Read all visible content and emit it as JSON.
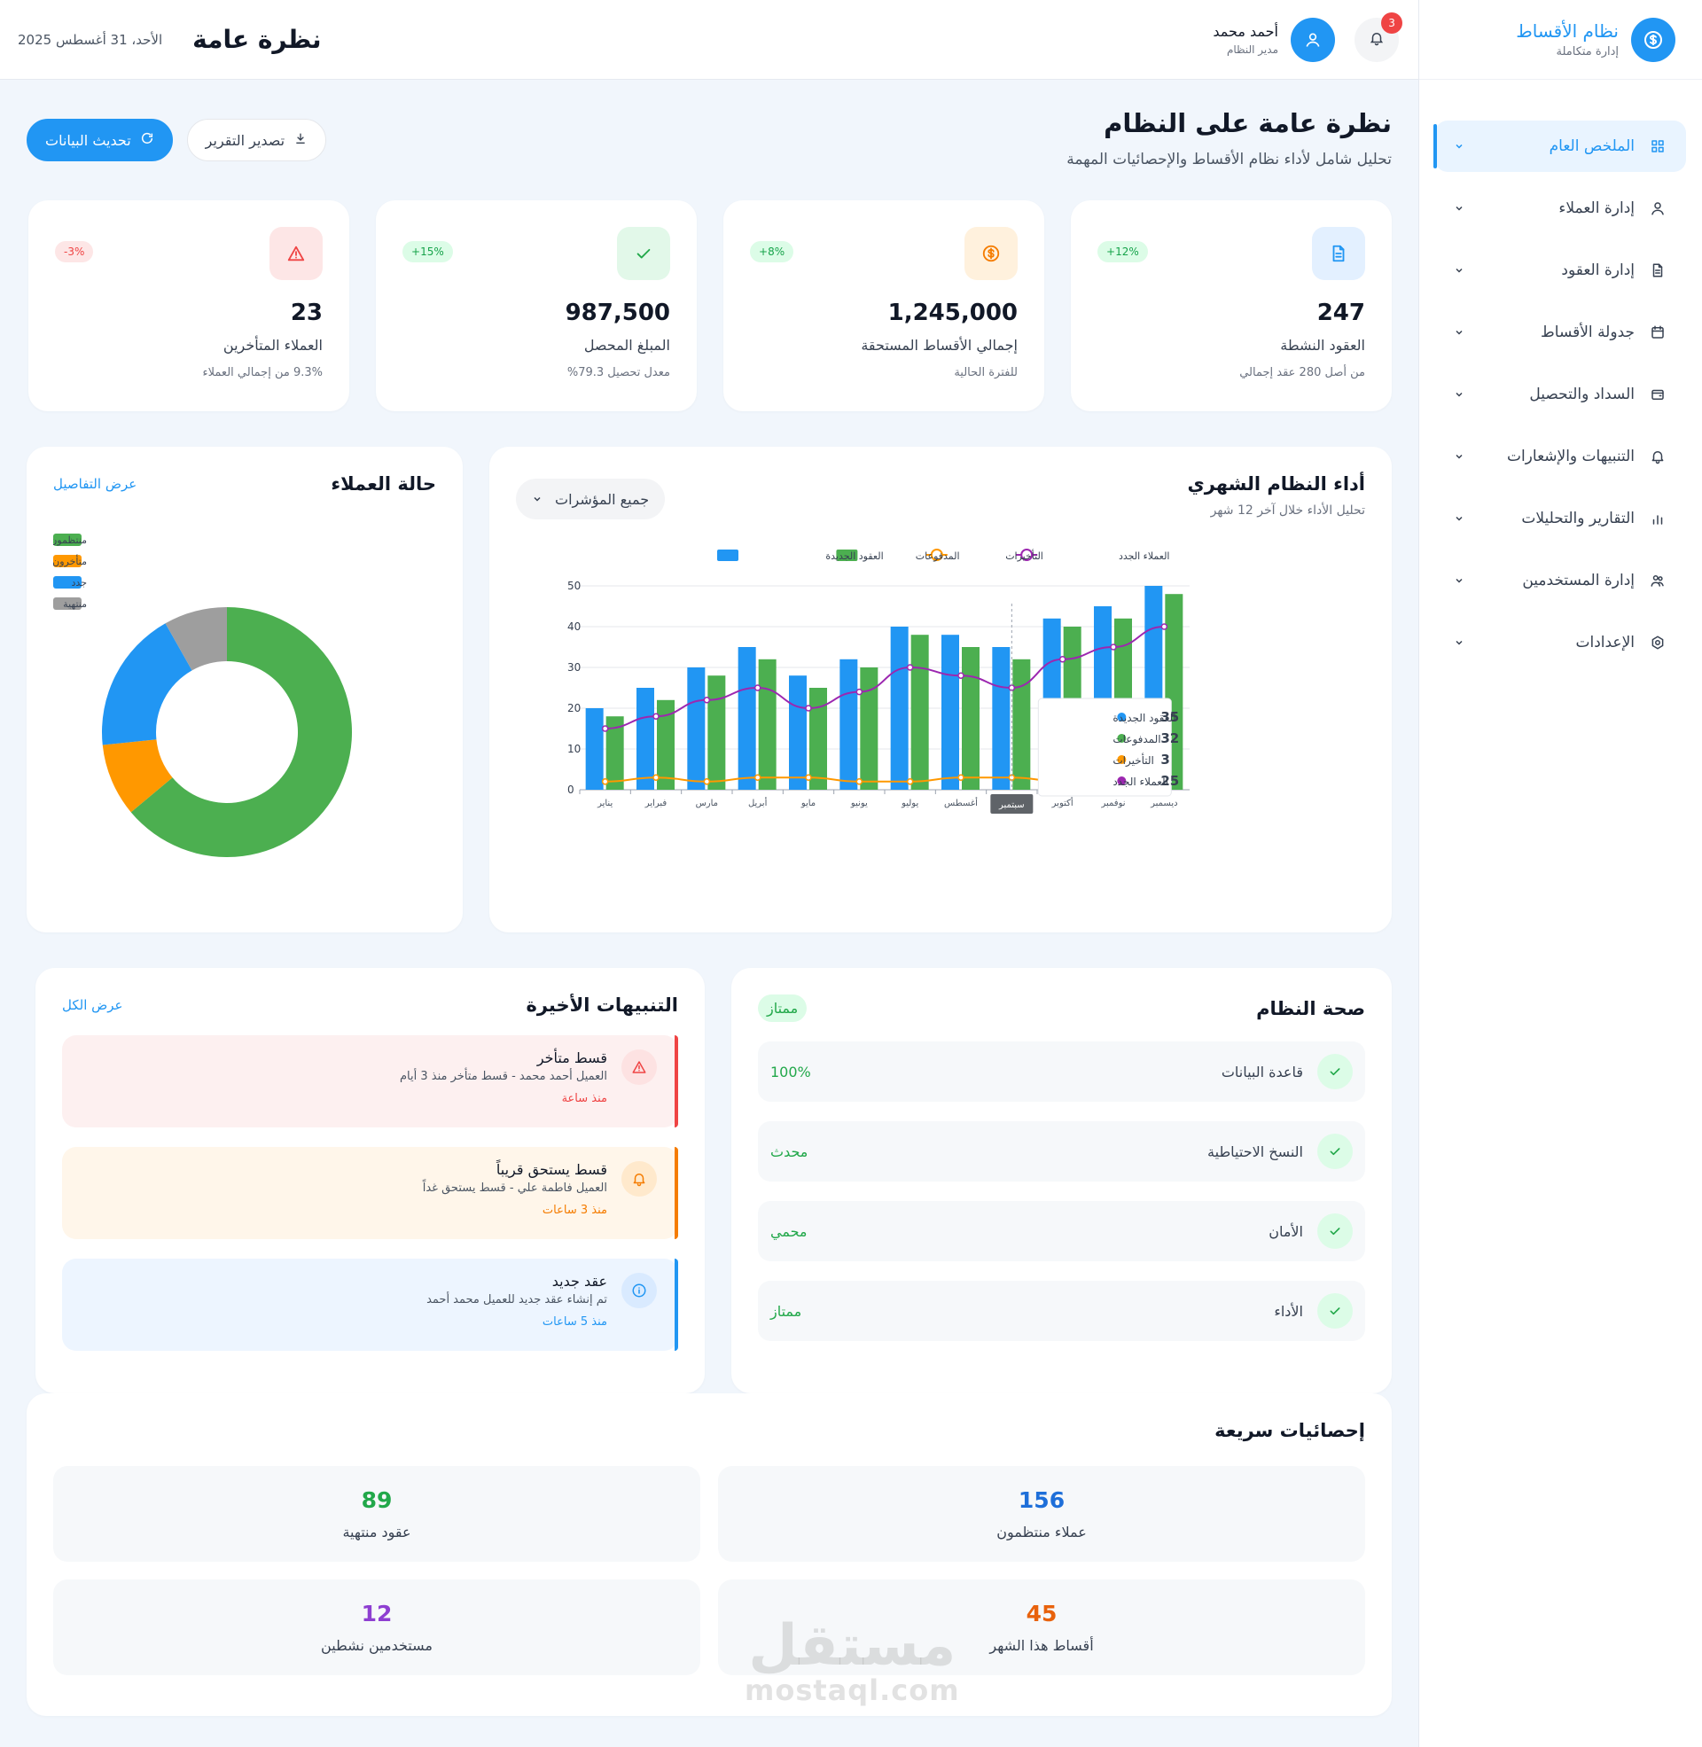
{
  "sidebar": {
    "brand_title": "نظام الأقساط",
    "brand_sub": "إدارة متكاملة",
    "items": [
      {
        "label": "الملخص العام",
        "icon": "grid-icon"
      },
      {
        "label": "إدارة العملاء",
        "icon": "user-icon"
      },
      {
        "label": "إدارة العقود",
        "icon": "document-icon"
      },
      {
        "label": "جدولة الأقساط",
        "icon": "calendar-icon"
      },
      {
        "label": "السداد والتحصيل",
        "icon": "wallet-icon"
      },
      {
        "label": "التنبيهات والإشعارات",
        "icon": "bell-icon"
      },
      {
        "label": "التقارير والتحليلات",
        "icon": "bar-chart-icon"
      },
      {
        "label": "إدارة المستخدمين",
        "icon": "users-icon"
      },
      {
        "label": "الإعدادات",
        "icon": "settings-icon"
      }
    ]
  },
  "header": {
    "title": "نظرة عامة",
    "date": "الأحد، 31 أغسطس 2025",
    "user_name": "أحمد محمد",
    "user_role": "مدير النظام",
    "notifications": "3"
  },
  "page": {
    "title": "نظرة عامة على النظام",
    "subtitle": "تحليل شامل لأداء نظام الأقساط والإحصائيات المهمة",
    "refresh_label": "تحديث البيانات",
    "export_label": "تصدير التقرير"
  },
  "stats": [
    {
      "value": "247",
      "label": "العقود النشطة",
      "note": "من أصل 280 عقد إجمالي",
      "badge": "12%+",
      "icon": "document-icon",
      "color": "#2196f3",
      "bg": "#e3f0ff",
      "badge_color": "#16a34a",
      "badge_bg": "#dcfce7"
    },
    {
      "value": "1,245,000",
      "label": "إجمالي الأقساط المستحقة",
      "note": "للفترة الحالية",
      "badge": "8%+",
      "icon": "dollar-icon",
      "color": "#f57c00",
      "bg": "#fff1dd",
      "badge_color": "#16a34a",
      "badge_bg": "#dcfce7"
    },
    {
      "value": "987,500",
      "label": "المبلغ المحصل",
      "note": "معدل تحصيل 79.3%",
      "badge": "15%+",
      "icon": "check-icon",
      "color": "#22a84a",
      "bg": "#e2f8e9",
      "badge_color": "#16a34a",
      "badge_bg": "#dcfce7"
    },
    {
      "value": "23",
      "label": "العملاء المتأخرين",
      "note": "9.3% من إجمالي العملاء",
      "badge": "3%-",
      "icon": "warning-icon",
      "color": "#ef4444",
      "bg": "#fde6e6",
      "badge_color": "#ef4444",
      "badge_bg": "#fde6e6"
    }
  ],
  "performance": {
    "title": "أداء النظام الشهري",
    "subtitle": "تحليل الأداء خلال آخر 12 شهر",
    "filter": "جميع المؤشرات"
  },
  "chart_data": {
    "type": "bar",
    "categories": [
      "يناير",
      "فبراير",
      "مارس",
      "أبريل",
      "مايو",
      "يونيو",
      "يوليو",
      "أغسطس",
      "سبتمبر",
      "أكتوبر",
      "نوفمبر",
      "ديسمبر"
    ],
    "series": [
      {
        "name": "العقود الجديدة",
        "type": "bar",
        "color": "#2196f3",
        "values": [
          20,
          25,
          30,
          35,
          28,
          32,
          40,
          38,
          35,
          42,
          45,
          50
        ]
      },
      {
        "name": "المدفوعات",
        "type": "bar",
        "color": "#4caf50",
        "values": [
          18,
          22,
          28,
          32,
          25,
          30,
          38,
          35,
          32,
          40,
          42,
          48
        ]
      },
      {
        "name": "التأخيرات",
        "type": "line",
        "color": "#ff9800",
        "values": [
          2,
          3,
          2,
          3,
          3,
          2,
          2,
          3,
          3,
          2,
          3,
          2
        ]
      },
      {
        "name": "العملاء الجدد",
        "type": "line",
        "color": "#9c27b0",
        "values": [
          15,
          18,
          22,
          25,
          20,
          24,
          30,
          28,
          25,
          32,
          35,
          40
        ]
      }
    ],
    "yticks": [
      "0",
      "10",
      "20",
      "30",
      "40",
      "50"
    ],
    "ylim": [
      0,
      50
    ],
    "tooltip": {
      "category": "سبتمبر",
      "rows": [
        {
          "name": "العقود الجديدة",
          "value": "35",
          "color": "#2196f3"
        },
        {
          "name": "المدفوعات",
          "value": "32",
          "color": "#4caf50"
        },
        {
          "name": "التأخيرات",
          "value": "3",
          "color": "#ff9800"
        },
        {
          "name": "العملاء الجدد",
          "value": "25",
          "color": "#9c27b0"
        }
      ]
    }
  },
  "status_chart": {
    "title": "حالة العملاء",
    "link": "عرض التفاصيل",
    "type": "pie",
    "slices": [
      {
        "name": "منتظمون",
        "value": 156,
        "color": "#4caf50"
      },
      {
        "name": "متأخرون",
        "value": 23,
        "color": "#ff9800"
      },
      {
        "name": "جدد",
        "value": 45,
        "color": "#2196f3"
      },
      {
        "name": "منتهية",
        "value": 20,
        "color": "#9e9e9e"
      }
    ]
  },
  "health": {
    "title": "صحة النظام",
    "badge": "ممتاز",
    "rows": [
      {
        "label": "قاعدة البيانات",
        "value": "100%"
      },
      {
        "label": "النسخ الاحتياطية",
        "value": "محدث"
      },
      {
        "label": "الأمان",
        "value": "محمي"
      },
      {
        "label": "الأداء",
        "value": "ممتاز"
      }
    ]
  },
  "alerts": {
    "title": "التنبيهات الأخيرة",
    "link": "عرض الكل",
    "items": [
      {
        "title": "قسط متأخر",
        "desc": "العميل أحمد محمد - قسط متأخر منذ 3 أيام",
        "time": "منذ ساعة",
        "kind": "red",
        "icon": "warning-icon"
      },
      {
        "title": "قسط يستحق قريباً",
        "desc": "العميل فاطمة علي - قسط يستحق غداً",
        "time": "منذ 3 ساعات",
        "kind": "orange",
        "icon": "bell-icon"
      },
      {
        "title": "عقد جديد",
        "desc": "تم إنشاء عقد جديد للعميل محمد أحمد",
        "time": "منذ 5 ساعات",
        "kind": "blue",
        "icon": "info-icon"
      }
    ]
  },
  "quick": {
    "title": "إحصائيات سريعة",
    "items": [
      {
        "value": "156",
        "label": "عملاء منتظمون",
        "color": "#1e6fd9"
      },
      {
        "value": "89",
        "label": "عقود منتهية",
        "color": "#22a84a"
      },
      {
        "value": "45",
        "label": "أقساط هذا الشهر",
        "color": "#e8620c"
      },
      {
        "value": "12",
        "label": "مستخدمين نشطين",
        "color": "#8e3fd1"
      }
    ]
  },
  "watermark": {
    "big": "مستقل",
    "small": "mostaql.com"
  }
}
